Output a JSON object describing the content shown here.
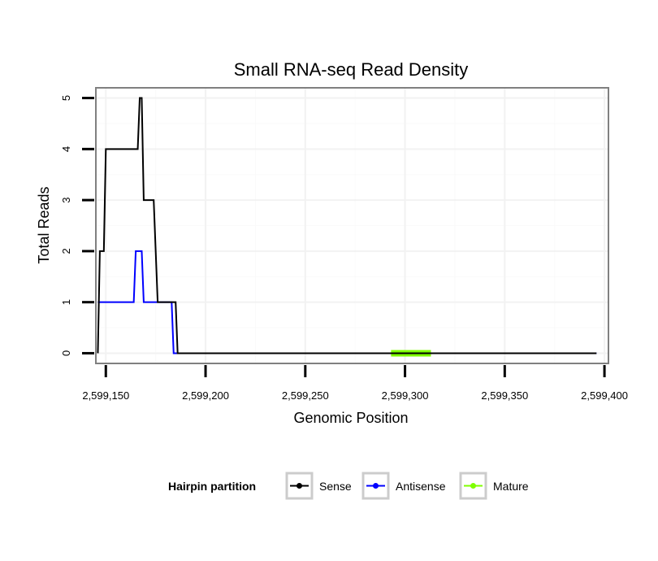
{
  "chart_data": {
    "type": "line",
    "title": "Small RNA-seq Read Density",
    "xlabel": "Genomic Position",
    "ylabel": "Total Reads",
    "xlim": [
      2599145,
      2599402
    ],
    "ylim": [
      -0.2,
      5.2
    ],
    "x_ticks": [
      2599150,
      2599200,
      2599250,
      2599300,
      2599350,
      2599400
    ],
    "x_tick_labels": [
      "2,599,150",
      "2,599,200",
      "2,599,250",
      "2,599,300",
      "2,599,350",
      "2,599,400"
    ],
    "y_ticks": [
      0,
      1,
      2,
      3,
      4,
      5
    ],
    "y_tick_labels": [
      "0",
      "1",
      "2",
      "3",
      "4",
      "5"
    ],
    "grid": true,
    "legend": {
      "position": "bottom",
      "title": "Hairpin partition",
      "entries": [
        "Sense",
        "Antisense",
        "Mature"
      ]
    },
    "series": [
      {
        "name": "Sense",
        "color": "#000000",
        "x": [
          2599146,
          2599147,
          2599149,
          2599150,
          2599151,
          2599159,
          2599166,
          2599167,
          2599168,
          2599169,
          2599170,
          2599174,
          2599175,
          2599176,
          2599177,
          2599185,
          2599186,
          2599396
        ],
        "y": [
          0,
          2,
          2,
          4,
          4,
          4,
          4,
          5,
          5,
          3,
          3,
          3,
          2,
          1,
          1,
          1,
          0,
          0
        ]
      },
      {
        "name": "Antisense",
        "color": "#0000ff",
        "x": [
          2599146,
          2599164,
          2599165,
          2599168,
          2599169,
          2599183,
          2599184,
          2599396
        ],
        "y": [
          1,
          1,
          2,
          2,
          1,
          1,
          0,
          0
        ]
      },
      {
        "name": "Mature",
        "color": "#7fff00",
        "x": [
          2599293,
          2599313
        ],
        "y": [
          0,
          0
        ]
      }
    ]
  }
}
